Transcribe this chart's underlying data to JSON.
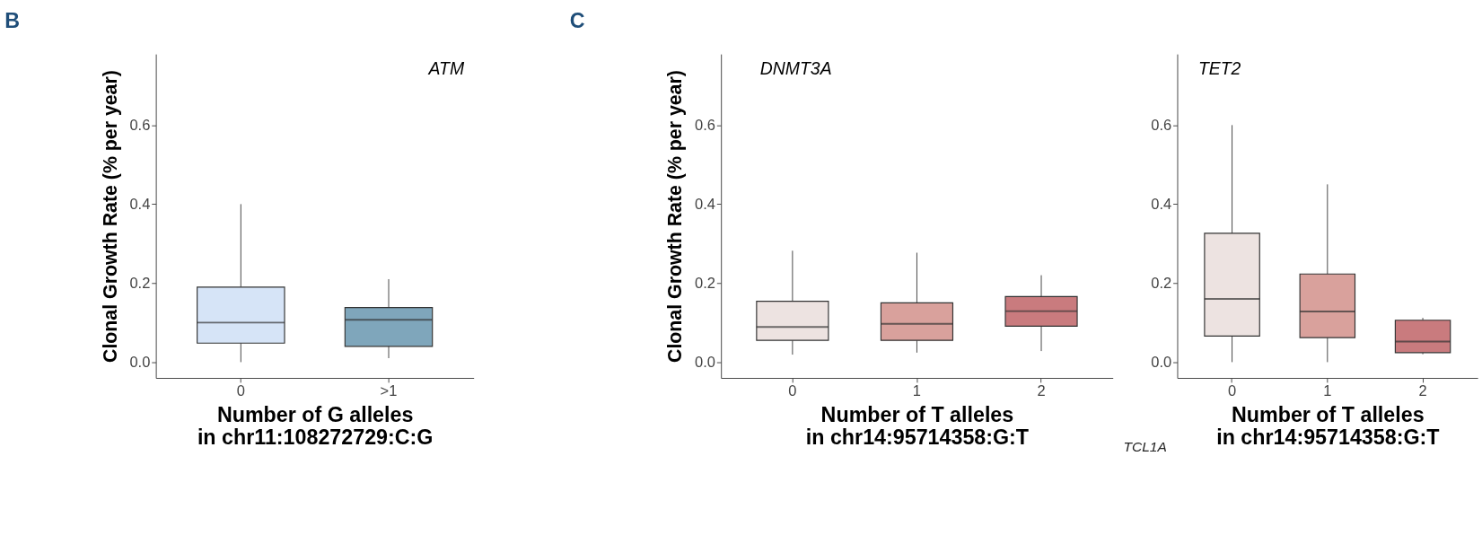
{
  "chart_data": [
    {
      "type": "box",
      "title": "B",
      "ylabel": "Clonal Growth Rate (% per year)",
      "xlabel": "Number of G alleles\nin chr11:108272729:C:G",
      "annotations": [
        "ATM"
      ],
      "categories": [
        "0",
        ">1"
      ],
      "colors": [
        "#d6e4f7",
        "#7fa6bb"
      ],
      "boxes": [
        {
          "low": 0.0,
          "q1": 0.048,
          "median": 0.1,
          "q3": 0.19,
          "high": 0.4
        },
        {
          "low": 0.01,
          "q1": 0.04,
          "median": 0.107,
          "q3": 0.138,
          "high": 0.21
        }
      ],
      "ylim": [
        -0.04,
        0.78
      ],
      "yticks": [
        {
          "value": 0,
          "label": "0.0"
        },
        {
          "value": 0.2,
          "label": "0.2"
        },
        {
          "value": 0.4,
          "label": "0.4"
        },
        {
          "value": 0.6,
          "label": "0.6"
        }
      ],
      "grid": false
    },
    {
      "type": "box",
      "title": "C",
      "ylabel": "Clonal Growth Rate (% per year)",
      "xlabel": "Number of T alleles\nin chr14:95714358:G:T",
      "annotations": [
        "DNMT3A"
      ],
      "categories": [
        "0",
        "1",
        "2"
      ],
      "colors": [
        "#ede3e1",
        "#d9a19c",
        "#c97b7e"
      ],
      "boxes": [
        {
          "low": 0.019,
          "q1": 0.055,
          "median": 0.089,
          "q3": 0.154,
          "high": 0.282
        },
        {
          "low": 0.024,
          "q1": 0.055,
          "median": 0.097,
          "q3": 0.15,
          "high": 0.277
        },
        {
          "low": 0.028,
          "q1": 0.091,
          "median": 0.129,
          "q3": 0.166,
          "high": 0.22
        }
      ],
      "ylim": [
        -0.04,
        0.78
      ],
      "yticks": [
        {
          "value": 0,
          "label": "0.0"
        },
        {
          "value": 0.2,
          "label": "0.2"
        },
        {
          "value": 0.4,
          "label": "0.4"
        },
        {
          "value": 0.6,
          "label": "0.6"
        }
      ],
      "grid": false
    },
    {
      "type": "box",
      "xlabel": "Number of T alleles\nin chr14:95714358:G:T",
      "annotations": [
        "TET2",
        "TCL1A"
      ],
      "categories": [
        "0",
        "1",
        "2"
      ],
      "colors": [
        "#ede3e1",
        "#d9a19c",
        "#c97b7e"
      ],
      "boxes": [
        {
          "low": 0.0,
          "q1": 0.066,
          "median": 0.16,
          "q3": 0.326,
          "high": 0.6
        },
        {
          "low": 0.0,
          "q1": 0.062,
          "median": 0.128,
          "q3": 0.223,
          "high": 0.45
        },
        {
          "low": 0.02,
          "q1": 0.024,
          "median": 0.052,
          "q3": 0.106,
          "high": 0.112
        }
      ],
      "ylim": [
        -0.04,
        0.78
      ],
      "yticks": [
        {
          "value": 0,
          "label": "0.0"
        },
        {
          "value": 0.2,
          "label": "0.2"
        },
        {
          "value": 0.4,
          "label": "0.4"
        },
        {
          "value": 0.6,
          "label": "0.6"
        }
      ],
      "grid": false
    }
  ]
}
